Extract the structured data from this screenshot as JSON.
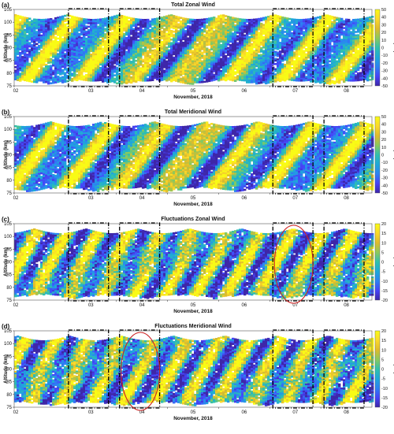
{
  "chart_data": [
    {
      "type": "heatmap",
      "panel_label": "(a)",
      "title": "Total  Zonal Wind",
      "xlabel": "November, 2018",
      "ylabel": "Altitude (km)",
      "x_ticks": [
        "02",
        "03",
        "04",
        "05",
        "06",
        "07",
        "08"
      ],
      "y_ticks": [
        75,
        80,
        85,
        90,
        95,
        100,
        105
      ],
      "ylim": [
        75,
        105
      ],
      "colorbar": {
        "label": "[m/s]",
        "ticks": [
          50,
          40,
          30,
          20,
          10,
          0,
          -10,
          -20,
          -30,
          -40,
          -50
        ],
        "range": [
          -50,
          50
        ]
      },
      "dashed_boxes": [
        "03",
        "04",
        "07",
        "08"
      ],
      "highlight_ellipse": null
    },
    {
      "type": "heatmap",
      "panel_label": "(b)",
      "title": "Total  Meridional Wind",
      "xlabel": "November, 2018",
      "ylabel": "Altitude (km)",
      "x_ticks": [
        "02",
        "03",
        "04",
        "05",
        "06",
        "07",
        "08"
      ],
      "y_ticks": [
        75,
        80,
        85,
        90,
        95,
        100,
        105
      ],
      "ylim": [
        75,
        105
      ],
      "colorbar": {
        "label": "[m/s]",
        "ticks": [
          50,
          40,
          30,
          20,
          10,
          0,
          -10,
          -20,
          -30,
          -40,
          -50
        ],
        "range": [
          -50,
          50
        ]
      },
      "dashed_boxes": [
        "03",
        "04",
        "07",
        "08"
      ],
      "highlight_ellipse": null
    },
    {
      "type": "heatmap",
      "panel_label": "(c)",
      "title": "Fluctuations  Zonal Wind",
      "xlabel": "November, 2018",
      "ylabel": "Altitude (km)",
      "x_ticks": [
        "02",
        "03",
        "04",
        "05",
        "06",
        "07",
        "08"
      ],
      "y_ticks": [
        75,
        80,
        85,
        90,
        95,
        100,
        105
      ],
      "ylim": [
        75,
        105
      ],
      "colorbar": {
        "label": "[m/s]",
        "ticks": [
          20,
          15,
          10,
          5,
          0,
          -5,
          -10,
          -15,
          -20
        ],
        "range": [
          -20,
          20
        ]
      },
      "dashed_boxes": [
        "03",
        "04",
        "07",
        "08"
      ],
      "highlight_ellipse": "07"
    },
    {
      "type": "heatmap",
      "panel_label": "(d)",
      "title": "Fluctuations  Meridional Wind",
      "xlabel": "November, 2018",
      "ylabel": "Altitude (km)",
      "x_ticks": [
        "02",
        "03",
        "04",
        "05",
        "06",
        "07",
        "08"
      ],
      "y_ticks": [
        75,
        80,
        85,
        90,
        95,
        100,
        105
      ],
      "ylim": [
        75,
        105
      ],
      "colorbar": {
        "label": "[m/s]",
        "ticks": [
          20,
          15,
          10,
          5,
          0,
          -5,
          -10,
          -15,
          -20
        ],
        "range": [
          -20,
          20
        ]
      },
      "dashed_boxes": [
        "03",
        "04",
        "07",
        "08"
      ],
      "highlight_ellipse": "04"
    }
  ],
  "colors": {
    "colormap": [
      "#3e26a8",
      "#4743f8",
      "#2c82f3",
      "#1ea9d9",
      "#30c1ad",
      "#8bc95d",
      "#dfbb2b",
      "#fbd92b",
      "#f9fb15"
    ],
    "dashed_box": "#000000",
    "ellipse": "#cc2222"
  }
}
